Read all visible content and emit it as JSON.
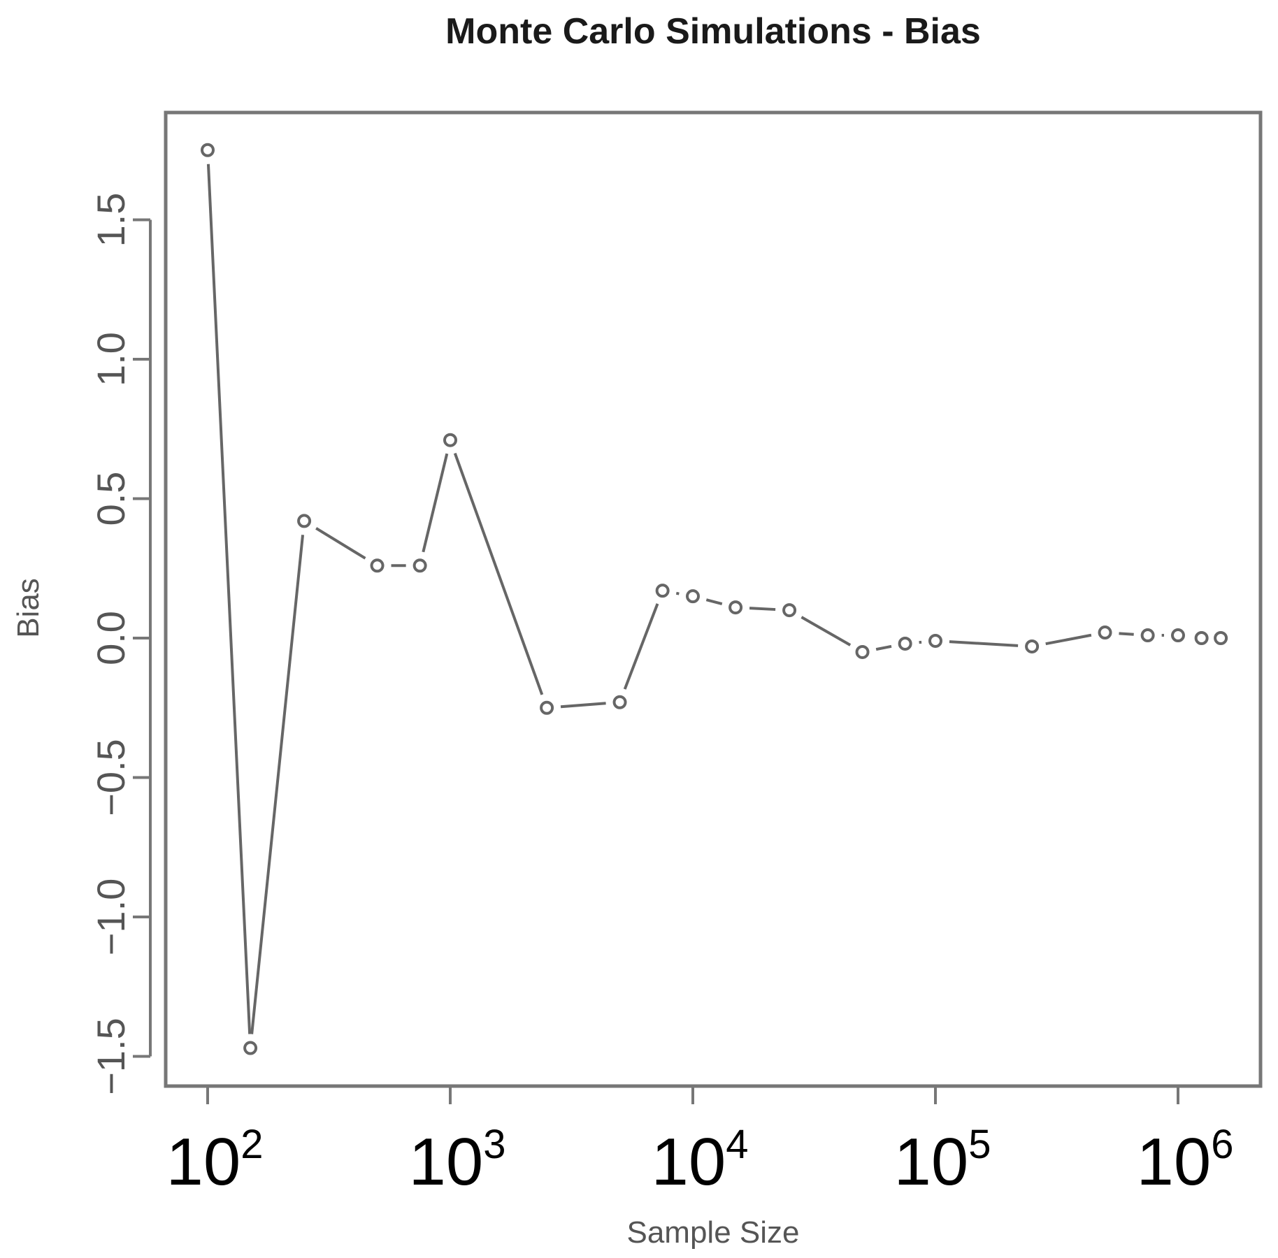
{
  "chart_data": {
    "type": "line",
    "title": "Monte Carlo Simulations - Bias",
    "xlabel": "Sample Size",
    "ylabel": "Bias",
    "x_scale": "log10",
    "xlim": [
      100,
      1600000
    ],
    "ylim": [
      -1.6,
      1.85
    ],
    "x_ticks": [
      {
        "value": 100,
        "base": "10",
        "exp": "2"
      },
      {
        "value": 1000,
        "base": "10",
        "exp": "3"
      },
      {
        "value": 10000,
        "base": "10",
        "exp": "4"
      },
      {
        "value": 100000,
        "base": "10",
        "exp": "5"
      },
      {
        "value": 1000000,
        "base": "10",
        "exp": "6"
      }
    ],
    "y_ticks": [
      {
        "value": -1.5,
        "label": "−1.5"
      },
      {
        "value": -1.0,
        "label": "−1.0"
      },
      {
        "value": -0.5,
        "label": "−0.5"
      },
      {
        "value": 0.0,
        "label": "0.0"
      },
      {
        "value": 0.5,
        "label": "0.5"
      },
      {
        "value": 1.0,
        "label": "1.0"
      },
      {
        "value": 1.5,
        "label": "1.5"
      }
    ],
    "grid": false,
    "marker": "open-circle",
    "color": "#666666",
    "series": [
      {
        "x": [
          100,
          150,
          250,
          500,
          750,
          1000,
          2500,
          5000,
          7500,
          10000,
          15000,
          25000,
          50000,
          75000,
          100000,
          250000,
          500000,
          750000,
          1000000,
          1250000,
          1500000
        ],
        "y": [
          1.75,
          -1.47,
          0.42,
          0.26,
          0.26,
          0.71,
          -0.25,
          -0.23,
          0.17,
          0.15,
          0.11,
          0.1,
          -0.05,
          -0.02,
          -0.01,
          -0.03,
          0.02,
          0.01,
          0.01,
          0.0,
          0.0
        ]
      }
    ]
  }
}
